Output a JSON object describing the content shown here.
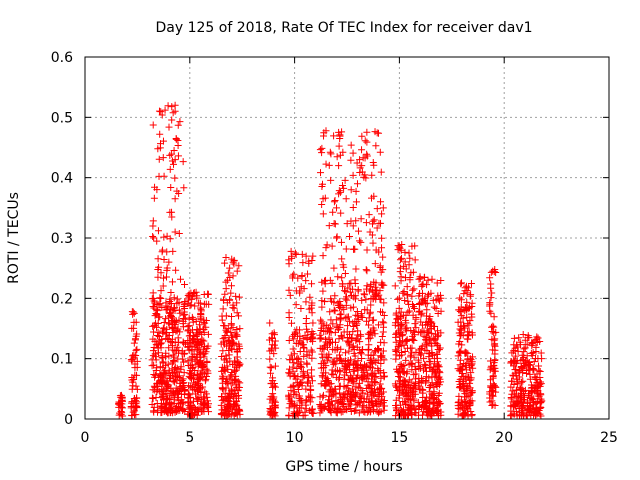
{
  "chart_data": {
    "type": "scatter",
    "title": "Day 125 of 2018, Rate Of TEC Index for receiver dav1",
    "xlabel": "GPS time / hours",
    "ylabel": "ROTI / TECUs",
    "xlim": [
      0,
      25
    ],
    "ylim": [
      0,
      0.6
    ],
    "xticks": [
      "0",
      "5",
      "10",
      "15",
      "20",
      "25"
    ],
    "yticks": [
      "0",
      "0.1",
      "0.2",
      "0.3",
      "0.4",
      "0.5",
      "0.6"
    ],
    "grid": true,
    "marker": "+",
    "color": "#ff0000",
    "clusters": [
      {
        "x_start": 1.6,
        "x_end": 1.8,
        "ymin": 0.005,
        "ymax": 0.04,
        "dense_max": 0.035,
        "count": 25
      },
      {
        "x_start": 2.2,
        "x_end": 2.5,
        "ymin": 0.005,
        "ymax": 0.18,
        "dense_max": 0.13,
        "count": 60
      },
      {
        "x_start": 3.2,
        "x_end": 4.8,
        "ymin": 0.01,
        "ymax": 0.52,
        "dense_max": 0.2,
        "count": 420
      },
      {
        "x_start": 4.9,
        "x_end": 5.9,
        "ymin": 0.005,
        "ymax": 0.21,
        "dense_max": 0.15,
        "count": 260
      },
      {
        "x_start": 6.5,
        "x_end": 7.4,
        "ymin": 0.005,
        "ymax": 0.27,
        "dense_max": 0.15,
        "count": 220
      },
      {
        "x_start": 8.8,
        "x_end": 9.1,
        "ymin": 0.005,
        "ymax": 0.16,
        "dense_max": 0.12,
        "count": 60
      },
      {
        "x_start": 9.7,
        "x_end": 10.9,
        "ymin": 0.005,
        "ymax": 0.28,
        "dense_max": 0.15,
        "count": 200
      },
      {
        "x_start": 11.2,
        "x_end": 14.3,
        "ymin": 0.01,
        "ymax": 0.48,
        "dense_max": 0.23,
        "count": 700
      },
      {
        "x_start": 14.8,
        "x_end": 15.8,
        "ymin": 0.005,
        "ymax": 0.29,
        "dense_max": 0.17,
        "count": 260
      },
      {
        "x_start": 15.9,
        "x_end": 17.0,
        "ymin": 0.005,
        "ymax": 0.24,
        "dense_max": 0.16,
        "count": 260
      },
      {
        "x_start": 17.8,
        "x_end": 18.5,
        "ymin": 0.005,
        "ymax": 0.23,
        "dense_max": 0.16,
        "count": 180
      },
      {
        "x_start": 19.3,
        "x_end": 19.6,
        "ymin": 0.02,
        "ymax": 0.25,
        "dense_max": 0.18,
        "count": 70
      },
      {
        "x_start": 20.3,
        "x_end": 21.8,
        "ymin": 0.005,
        "ymax": 0.14,
        "dense_max": 0.1,
        "count": 260
      }
    ],
    "highlights": [
      {
        "x": 4.3,
        "y": 0.52
      },
      {
        "x": 4.3,
        "y": 0.51
      },
      {
        "x": 4.35,
        "y": 0.465
      },
      {
        "x": 4.25,
        "y": 0.445
      },
      {
        "x": 4.3,
        "y": 0.43
      },
      {
        "x": 4.3,
        "y": 0.365
      },
      {
        "x": 4.3,
        "y": 0.31
      },
      {
        "x": 3.7,
        "y": 0.28
      },
      {
        "x": 4.0,
        "y": 0.26
      },
      {
        "x": 2.35,
        "y": 0.175
      },
      {
        "x": 6.9,
        "y": 0.25
      },
      {
        "x": 7.0,
        "y": 0.265
      },
      {
        "x": 10.55,
        "y": 0.27
      },
      {
        "x": 12.1,
        "y": 0.475
      },
      {
        "x": 12.15,
        "y": 0.465
      },
      {
        "x": 12.1,
        "y": 0.42
      },
      {
        "x": 13.1,
        "y": 0.43
      },
      {
        "x": 13.2,
        "y": 0.42
      },
      {
        "x": 12.7,
        "y": 0.38
      },
      {
        "x": 13.0,
        "y": 0.39
      },
      {
        "x": 11.9,
        "y": 0.36
      },
      {
        "x": 12.0,
        "y": 0.35
      },
      {
        "x": 14.1,
        "y": 0.36
      },
      {
        "x": 14.15,
        "y": 0.34
      },
      {
        "x": 13.8,
        "y": 0.33
      },
      {
        "x": 12.8,
        "y": 0.32
      },
      {
        "x": 12.0,
        "y": 0.3
      },
      {
        "x": 13.6,
        "y": 0.31
      },
      {
        "x": 15.0,
        "y": 0.285
      },
      {
        "x": 15.05,
        "y": 0.25
      },
      {
        "x": 16.2,
        "y": 0.235
      },
      {
        "x": 18.2,
        "y": 0.22
      },
      {
        "x": 19.45,
        "y": 0.245
      },
      {
        "x": 6.8,
        "y": 0.23
      },
      {
        "x": 5.3,
        "y": 0.21
      },
      {
        "x": 5.9,
        "y": 0.19
      }
    ]
  }
}
